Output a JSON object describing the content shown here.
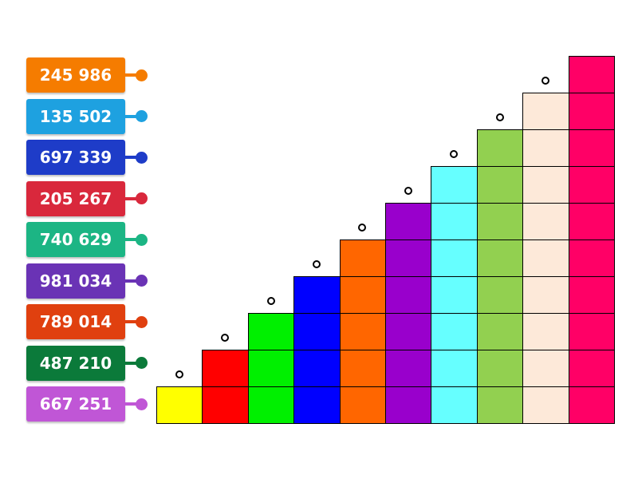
{
  "items": [
    {
      "label": "245 986"
    },
    {
      "label": "135 502"
    },
    {
      "label": "697 339"
    },
    {
      "label": "205 267"
    },
    {
      "label": "740 629"
    },
    {
      "label": "981 034"
    },
    {
      "label": "789 014"
    },
    {
      "label": "487 210"
    },
    {
      "label": "667 251"
    }
  ]
}
